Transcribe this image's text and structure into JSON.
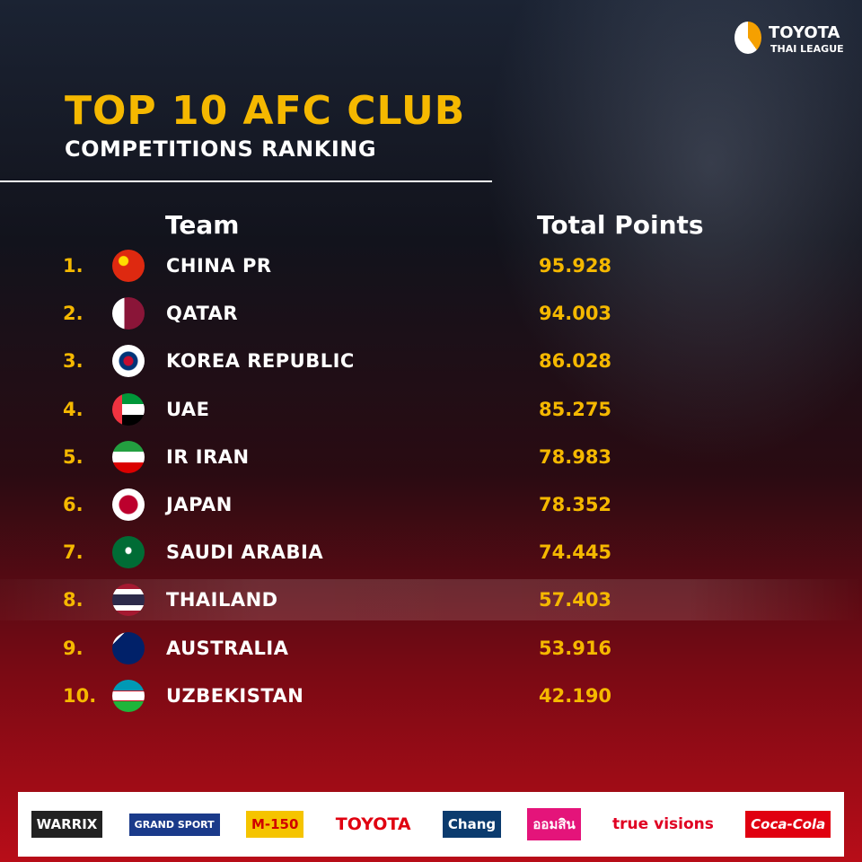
{
  "header": {
    "title": "TOP 10 AFC CLUB",
    "subtitle": "COMPETITIONS RANKING",
    "logo_top": "TOYOTA",
    "logo_bottom": "THAI LEAGUE"
  },
  "table": {
    "columns": [
      "Team",
      "Total Points"
    ],
    "rows": [
      [
        "1.",
        "CHINA PR",
        "95.928"
      ],
      [
        "2.",
        "QATAR",
        "94.003"
      ],
      [
        "3.",
        "KOREA REPUBLIC",
        "86.028"
      ],
      [
        "4.",
        "UAE",
        "85.275"
      ],
      [
        "5.",
        "IR IRAN",
        "78.983"
      ],
      [
        "6.",
        "JAPAN",
        "78.352"
      ],
      [
        "7.",
        "SAUDI ARABIA",
        "74.445"
      ],
      [
        "8.",
        "THAILAND",
        "57.403"
      ],
      [
        "9.",
        "AUSTRALIA",
        "53.916"
      ],
      [
        "10.",
        "UZBEKISTAN",
        "42.190"
      ]
    ]
  },
  "sponsors": [
    "WARRIX",
    "GRAND SPORT",
    "M-150",
    "TOYOTA",
    "Chang",
    "ออมสิน",
    "true visions",
    "Coca-Cola"
  ]
}
